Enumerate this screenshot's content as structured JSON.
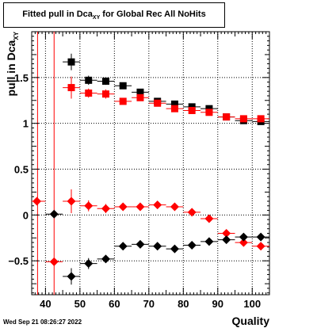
{
  "title": {
    "main": "Fitted pull in Dca",
    "sub": "XY",
    "suffix": " for Global Rec All NoHits"
  },
  "timestamp": "Wed Sep 21 08:26:27 2022",
  "chart_data": {
    "type": "scatter",
    "xlabel": "Quality",
    "ylabel": "pull in Dca",
    "ylabel_sub": "XY",
    "xlim": [
      36,
      105
    ],
    "ylim": [
      -0.87,
      2.0
    ],
    "xticks": [
      40,
      50,
      60,
      70,
      80,
      90,
      100
    ],
    "yticks": [
      -0.5,
      0,
      0.5,
      1,
      1.5
    ],
    "ytick_labels": [
      "−0.5",
      "0",
      "0.5",
      "1",
      "1.5"
    ],
    "grid": true,
    "vlines": [
      {
        "x": 37.7,
        "color": "#ff0000"
      },
      {
        "x": 42.5,
        "color": "#ff0000"
      }
    ],
    "series": [
      {
        "marker": "square",
        "color": "#000000",
        "x": [
          47.5,
          52.5,
          57.5,
          62.5,
          67.5,
          72.5,
          77.5,
          82.5,
          87.5,
          92.5,
          97.5,
          102.5
        ],
        "y": [
          1.67,
          1.47,
          1.46,
          1.41,
          1.34,
          1.24,
          1.21,
          1.18,
          1.16,
          1.07,
          1.03,
          1.02
        ],
        "err": [
          0.09,
          0.05,
          0.04,
          0.03,
          0.03,
          0.02,
          0.02,
          0.02,
          0.02,
          0.02,
          0.02,
          0.02
        ]
      },
      {
        "marker": "square",
        "color": "#ff0000",
        "x": [
          47.5,
          52.5,
          57.5,
          62.5,
          67.5,
          72.5,
          77.5,
          82.5,
          87.5,
          92.5,
          97.5,
          102.5
        ],
        "y": [
          1.39,
          1.33,
          1.32,
          1.24,
          1.28,
          1.22,
          1.16,
          1.14,
          1.12,
          1.07,
          1.05,
          1.05
        ],
        "err": [
          0.12,
          0.05,
          0.05,
          0.03,
          0.03,
          0.03,
          0.02,
          0.02,
          0.02,
          0.02,
          0.02,
          0.02
        ]
      },
      {
        "marker": "diamond",
        "color": "#ff0000",
        "x": [
          37.5,
          42.5,
          47.5,
          52.5,
          57.5,
          62.5,
          67.5,
          72.5,
          77.5,
          82.5,
          87.5,
          92.5,
          97.5,
          102.5
        ],
        "y": [
          0.15,
          -0.51,
          0.15,
          0.1,
          0.07,
          0.09,
          0.09,
          0.11,
          0.09,
          0.03,
          -0.04,
          -0.2,
          -0.3,
          -0.34
        ],
        "err": [
          0.0,
          0.0,
          0.13,
          0.06,
          0.05,
          0.03,
          0.02,
          0.02,
          0.02,
          0.02,
          0.02,
          0.02,
          0.02,
          0.02
        ]
      },
      {
        "marker": "diamond",
        "color": "#000000",
        "x": [
          42.5,
          47.5,
          52.5,
          57.5,
          62.5,
          67.5,
          72.5,
          77.5,
          82.5,
          87.5,
          92.5,
          97.5,
          102.5
        ],
        "y": [
          0.01,
          -0.67,
          -0.53,
          -0.48,
          -0.34,
          -0.32,
          -0.34,
          -0.37,
          -0.33,
          -0.29,
          -0.27,
          -0.24,
          -0.24
        ],
        "err": [
          0.0,
          0.09,
          0.06,
          0.04,
          0.03,
          0.02,
          0.02,
          0.02,
          0.02,
          0.02,
          0.02,
          0.02,
          0.02
        ]
      }
    ]
  }
}
